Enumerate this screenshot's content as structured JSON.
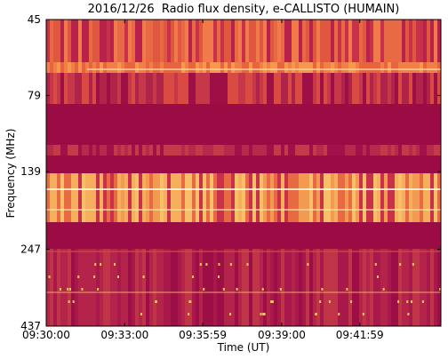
{
  "chart_data": {
    "type": "spectrogram",
    "title": "2016/12/26  Radio flux density, e-CALLISTO (HUMAIN)",
    "x_label": "Time (UT)",
    "y_label": "Frequency (MHz)",
    "xlim": [
      "09:30:00",
      "09:45:05"
    ],
    "xticks": [
      "09:30:00",
      "09:33:00",
      "09:35:59",
      "09:39:00",
      "09:41:59"
    ],
    "ylim": [
      437,
      45
    ],
    "y_scale": "log",
    "yticks": [
      45,
      79,
      139,
      247,
      437
    ]
  }
}
